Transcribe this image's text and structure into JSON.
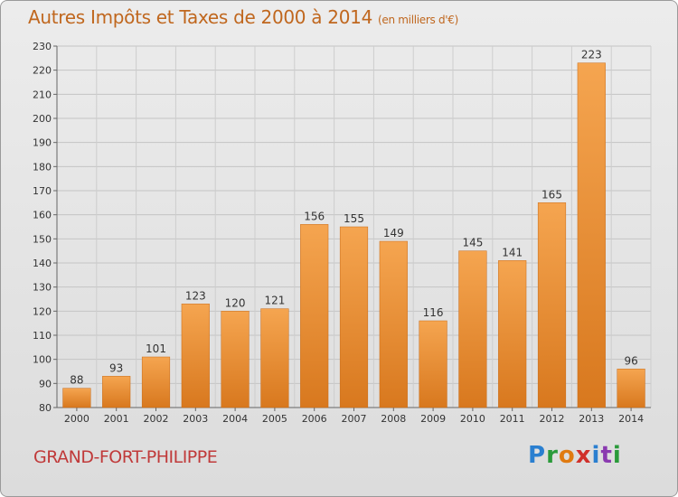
{
  "title": "Autres Impôts et Taxes de 2000 à 2014",
  "subtitle": "(en milliers d'€)",
  "footer": {
    "commune": "GRAND-FORT-PHILIPPE",
    "logo": "Proxiti"
  },
  "colors": {
    "bar_top": "#f5a550",
    "bar_bottom": "#d8781e",
    "title": "#c0671e",
    "commune": "#c03a3a",
    "logo_letters": [
      "#2a7fd0",
      "#2a9a3a",
      "#e07a10",
      "#d0302a",
      "#2a7fd0",
      "#8a3ab0",
      "#2a9a3a"
    ]
  },
  "chart_data": {
    "type": "bar",
    "title": "Autres Impôts et Taxes de 2000 à 2014",
    "subtitle": "(en milliers d'€)",
    "categories": [
      "2000",
      "2001",
      "2002",
      "2003",
      "2004",
      "2005",
      "2006",
      "2007",
      "2008",
      "2009",
      "2010",
      "2011",
      "2012",
      "2013",
      "2014"
    ],
    "values": [
      88,
      93,
      101,
      123,
      120,
      121,
      156,
      155,
      149,
      116,
      145,
      141,
      165,
      223,
      96
    ],
    "ylim": [
      80,
      230
    ],
    "yticks": [
      80,
      90,
      100,
      110,
      120,
      130,
      140,
      150,
      160,
      170,
      180,
      190,
      200,
      210,
      220,
      230
    ],
    "grid": true,
    "data_labels": true
  }
}
